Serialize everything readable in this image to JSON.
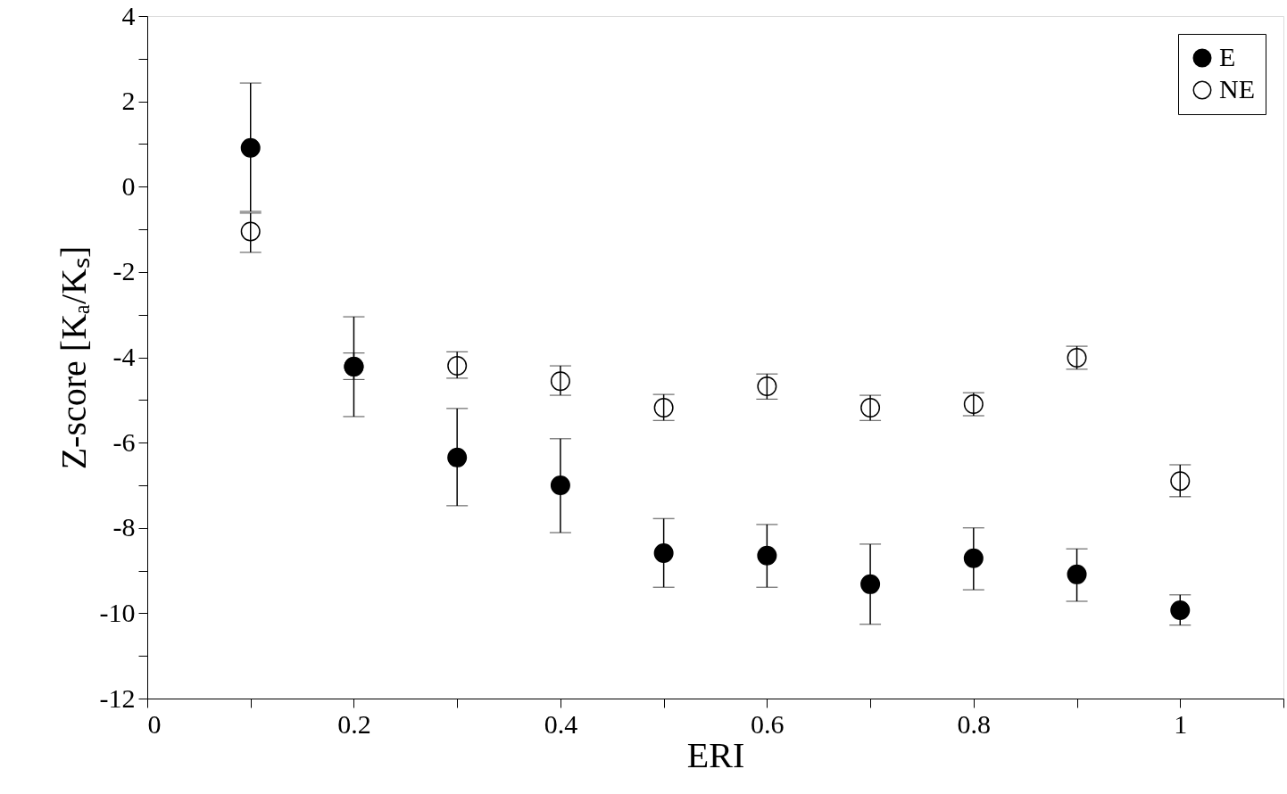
{
  "chart_data": {
    "type": "scatter",
    "xlabel": "ERI",
    "ylabel": "Z-score [Kₐ/Kₛ]",
    "x": [
      0.1,
      0.2,
      0.3,
      0.4,
      0.5,
      0.6,
      0.7,
      0.8,
      0.9,
      1.0
    ],
    "series": [
      {
        "name": "E",
        "color": "#000000",
        "values": [
          0.91,
          -4.22,
          -6.35,
          -7.0,
          -8.59,
          -8.65,
          -9.32,
          -8.71,
          -9.09,
          -9.93
        ],
        "errors": [
          [
            -0.58,
            2.43
          ],
          [
            -5.39,
            -3.05
          ],
          [
            -7.48,
            -5.2
          ],
          [
            -8.11,
            -5.91
          ],
          [
            -9.39,
            -7.78
          ],
          [
            -9.39,
            -7.92
          ],
          [
            -10.26,
            -8.38
          ],
          [
            -9.45,
            -8.0
          ],
          [
            -9.72,
            -8.49
          ],
          [
            -10.28,
            -9.57
          ]
        ]
      },
      {
        "name": "NE",
        "color": "#000000",
        "values": [
          -1.05,
          -4.22,
          -4.2,
          -4.56,
          -5.18,
          -4.68,
          -5.18,
          -5.1,
          -4.01,
          -6.9
        ],
        "errors": [
          [
            -1.54,
            -0.62
          ],
          [
            -4.52,
            -3.9
          ],
          [
            -4.49,
            -3.87
          ],
          [
            -4.89,
            -4.2
          ],
          [
            -5.48,
            -4.87
          ],
          [
            -4.98,
            -4.39
          ],
          [
            -5.48,
            -4.89
          ],
          [
            -5.37,
            -4.83
          ],
          [
            -4.28,
            -3.74
          ],
          [
            -7.27,
            -6.52
          ]
        ]
      }
    ],
    "xlim": [
      0,
      1.1
    ],
    "xticks": [
      0,
      {
        "value": 0.1,
        "label": null
      },
      0.2,
      {
        "value": 0.3,
        "label": null
      },
      0.4,
      {
        "value": 0.5,
        "label": null
      },
      0.6,
      {
        "value": 0.7,
        "label": null
      },
      0.8,
      {
        "value": 0.9,
        "label": null
      },
      1,
      {
        "value": 1.1,
        "label": null
      }
    ],
    "ylim": [
      -12,
      4
    ],
    "yticks": [
      -12,
      {
        "value": -11,
        "label": null
      },
      -10,
      {
        "value": -9,
        "label": null
      },
      -8,
      {
        "value": -7,
        "label": null
      },
      -6,
      {
        "value": -5,
        "label": null
      },
      -4,
      {
        "value": -3,
        "label": null
      },
      -2,
      {
        "value": -1,
        "label": null
      },
      0,
      {
        "value": 1,
        "label": null
      },
      2,
      {
        "value": 3,
        "label": null
      },
      4
    ],
    "marker": "circle",
    "grid": false,
    "legend": "top right"
  }
}
